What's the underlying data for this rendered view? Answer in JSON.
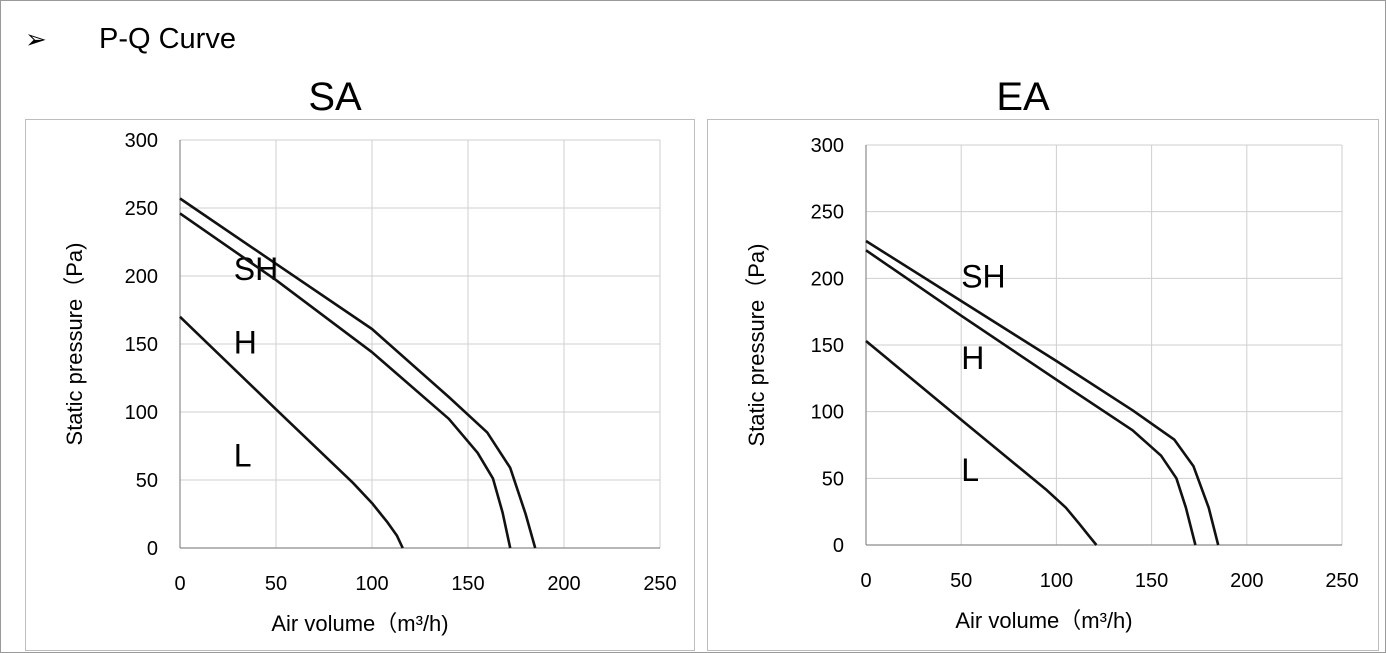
{
  "header": {
    "bullet": "➢",
    "title": "P-Q Curve"
  },
  "chart_data": [
    {
      "type": "line",
      "title": "SA",
      "xlabel": "Air volume（m³/h)",
      "ylabel": "Static pressure（Pa)",
      "xlim": [
        0,
        250
      ],
      "ylim": [
        0,
        300
      ],
      "xticks": [
        0,
        50,
        100,
        150,
        200,
        250
      ],
      "yticks": [
        0,
        50,
        100,
        150,
        200,
        250,
        300
      ],
      "grid": true,
      "series": [
        {
          "name": "SH",
          "x": [
            0,
            50,
            100,
            140,
            160,
            172,
            180,
            185
          ],
          "y": [
            257,
            209,
            161,
            111,
            85,
            59,
            25,
            0
          ]
        },
        {
          "name": "H",
          "x": [
            0,
            50,
            100,
            140,
            155,
            163,
            168,
            172
          ],
          "y": [
            246,
            197,
            144,
            95,
            70,
            51,
            26,
            0
          ]
        },
        {
          "name": "L",
          "x": [
            0,
            50,
            90,
            100,
            108,
            113,
            116
          ],
          "y": [
            170,
            102,
            48,
            33,
            19,
            9,
            0
          ]
        }
      ]
    },
    {
      "type": "line",
      "title": "EA",
      "xlabel": "Air volume（m³/h)",
      "ylabel": "Static pressure（Pa)",
      "xlim": [
        0,
        250
      ],
      "ylim": [
        0,
        300
      ],
      "xticks": [
        0,
        50,
        100,
        150,
        200,
        250
      ],
      "yticks": [
        0,
        50,
        100,
        150,
        200,
        250,
        300
      ],
      "grid": true,
      "series": [
        {
          "name": "SH",
          "x": [
            0,
            50,
            100,
            140,
            162,
            172,
            180,
            185
          ],
          "y": [
            228,
            183,
            138,
            101,
            79,
            59,
            28,
            0
          ]
        },
        {
          "name": "H",
          "x": [
            0,
            50,
            100,
            140,
            155,
            163,
            168,
            173
          ],
          "y": [
            221,
            172,
            124,
            86,
            67,
            50,
            28,
            0
          ]
        },
        {
          "name": "L",
          "x": [
            0,
            50,
            95,
            105,
            112,
            117,
            121
          ],
          "y": [
            153,
            94,
            41,
            28,
            16,
            7,
            0
          ]
        }
      ]
    }
  ]
}
